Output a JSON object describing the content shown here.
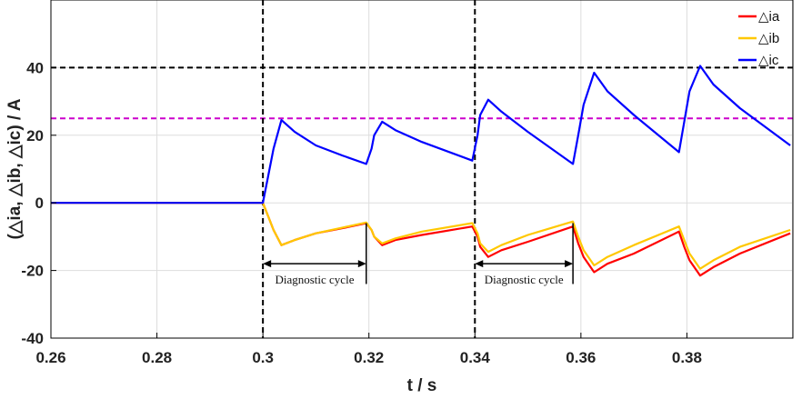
{
  "chart_data": {
    "type": "line",
    "xlabel": "t / s",
    "ylabel": "(△ia, △ib, △ic) / A",
    "xlim": [
      0.26,
      0.4
    ],
    "ylim": [
      -40,
      60
    ],
    "xticks": [
      "0.26",
      "0.28",
      "0.3",
      "0.32",
      "0.34",
      "0.36",
      "0.38"
    ],
    "xtick_values": [
      0.26,
      0.28,
      0.3,
      0.32,
      0.34,
      0.36,
      0.38
    ],
    "yticks": [
      "-40",
      "-20",
      "0",
      "20",
      "40"
    ],
    "ytick_values": [
      -40,
      -20,
      0,
      20,
      40
    ],
    "grid": true,
    "legend_position": "top-right",
    "series": [
      {
        "name": "△ia",
        "color": "#ff0000",
        "x": [
          0.26,
          0.3,
          0.301,
          0.302,
          0.3035,
          0.306,
          0.31,
          0.315,
          0.3195,
          0.3205,
          0.321,
          0.3225,
          0.325,
          0.33,
          0.3395,
          0.3405,
          0.341,
          0.3425,
          0.345,
          0.35,
          0.3585,
          0.3595,
          0.3605,
          0.3625,
          0.365,
          0.37,
          0.3785,
          0.3795,
          0.3805,
          0.3825,
          0.385,
          0.39,
          0.3995
        ],
        "y": [
          0,
          0,
          -4,
          -8,
          -12.5,
          -11,
          -9,
          -7.5,
          -6,
          -8,
          -10,
          -12.5,
          -11,
          -9.5,
          -7,
          -10,
          -13,
          -16,
          -14,
          -11.5,
          -7,
          -12,
          -16,
          -20.5,
          -18,
          -15,
          -8.5,
          -13,
          -17,
          -21.5,
          -19,
          -15,
          -9
        ]
      },
      {
        "name": "△ib",
        "color": "#ffc800",
        "x": [
          0.26,
          0.3,
          0.301,
          0.302,
          0.3035,
          0.306,
          0.31,
          0.315,
          0.3195,
          0.3205,
          0.321,
          0.3225,
          0.325,
          0.33,
          0.3395,
          0.3405,
          0.341,
          0.3425,
          0.345,
          0.35,
          0.3585,
          0.3595,
          0.3605,
          0.3625,
          0.365,
          0.37,
          0.3785,
          0.3795,
          0.3805,
          0.3825,
          0.385,
          0.39,
          0.3995
        ],
        "y": [
          0,
          0,
          -4,
          -8,
          -12.5,
          -11,
          -9,
          -7.3,
          -5.8,
          -8,
          -10,
          -12,
          -10.5,
          -8.5,
          -6,
          -9,
          -12,
          -14.5,
          -12.5,
          -9.5,
          -5.5,
          -10,
          -14,
          -18.5,
          -16,
          -12.5,
          -7,
          -11,
          -15,
          -19.5,
          -17,
          -13,
          -8
        ]
      },
      {
        "name": "△ic",
        "color": "#0000ff",
        "x": [
          0.26,
          0.3,
          0.301,
          0.302,
          0.3035,
          0.306,
          0.31,
          0.315,
          0.3195,
          0.3205,
          0.321,
          0.3225,
          0.325,
          0.33,
          0.3395,
          0.3405,
          0.341,
          0.3425,
          0.345,
          0.35,
          0.3585,
          0.3595,
          0.3605,
          0.3625,
          0.365,
          0.37,
          0.3785,
          0.3795,
          0.3805,
          0.3825,
          0.385,
          0.39,
          0.3995
        ],
        "y": [
          0,
          0,
          8,
          16,
          24.5,
          21,
          17,
          14,
          11.5,
          16,
          20,
          24,
          21.5,
          18,
          12.5,
          20,
          26,
          30.5,
          27,
          21,
          11.5,
          20,
          29,
          38.5,
          33,
          26,
          15,
          24,
          33,
          40.5,
          35,
          28,
          17
        ]
      }
    ],
    "reference_lines": [
      {
        "y": 40,
        "color": "#000000",
        "style": "dashed"
      },
      {
        "y": 25,
        "color": "#cc00cc",
        "style": "dashed"
      },
      {
        "x": 0.3,
        "color": "#000000",
        "style": "dashed"
      },
      {
        "x": 0.34,
        "color": "#000000",
        "style": "dashed"
      }
    ],
    "annotations": [
      {
        "text": "Diagnostic cycle",
        "from_x": 0.3,
        "to_x": 0.3195,
        "y": -18
      },
      {
        "text": "Diagnostic cycle",
        "from_x": 0.34,
        "to_x": 0.3585,
        "y": -18
      }
    ]
  }
}
